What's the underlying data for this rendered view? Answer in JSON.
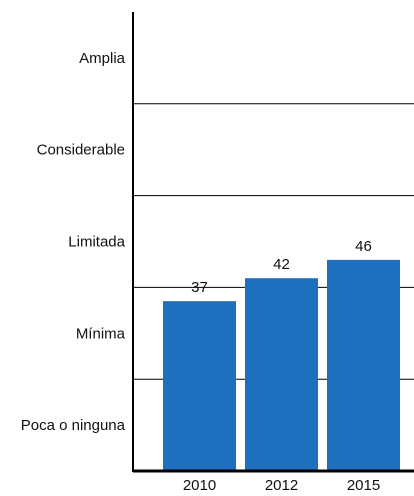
{
  "chart_data": {
    "type": "bar",
    "categories": [
      "2010",
      "2012",
      "2015"
    ],
    "values": [
      37,
      42,
      46
    ],
    "y_category_labels": [
      "Amplia",
      "Considerable",
      "Limitada",
      "Mínima",
      "Poca o ninguna"
    ],
    "ylim": [
      0,
      100
    ],
    "grid": true,
    "bar_color": "#1f6fbf"
  }
}
